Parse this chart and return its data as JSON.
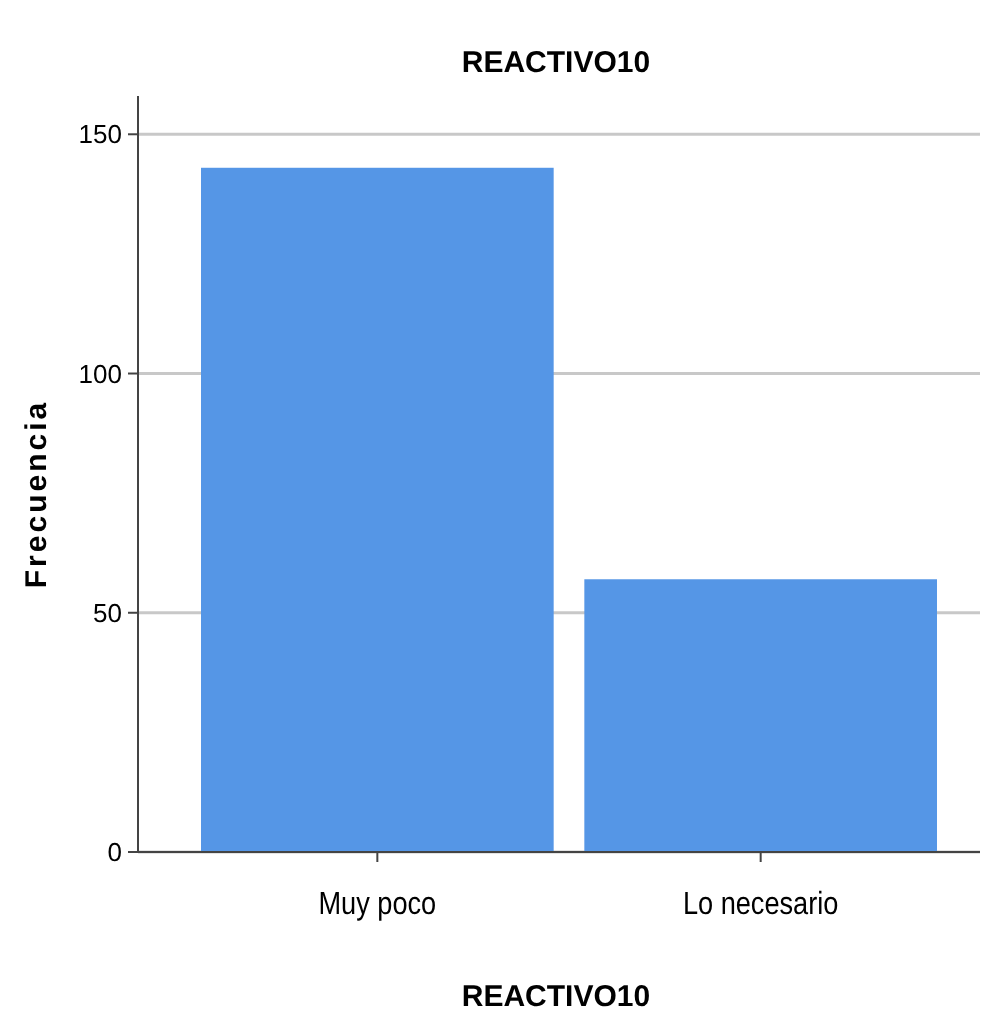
{
  "chart_data": {
    "type": "bar",
    "title": "REACTIVO10",
    "xlabel": "REACTIVO10",
    "ylabel": "Frecuencia",
    "categories": [
      "Muy poco",
      "Lo necesario"
    ],
    "values": [
      143,
      57
    ],
    "color": "#5596e6",
    "ylim": [
      0,
      158
    ],
    "yticks": [
      0,
      50,
      100,
      150
    ],
    "grid": "y"
  }
}
